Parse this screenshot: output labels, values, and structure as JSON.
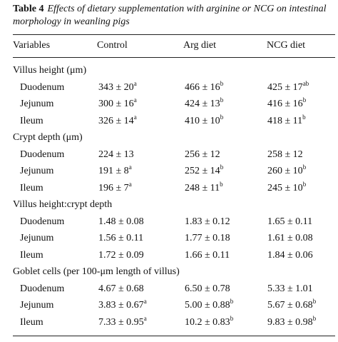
{
  "caption": {
    "label": "Table 4",
    "title": "Effects of dietary supplementation with arginine or NCG on intestinal morphology in weanling pigs"
  },
  "table": {
    "columns": [
      "Variables",
      "Control",
      "Arg diet",
      "NCG diet"
    ],
    "sections": [
      {
        "title": "Villus height (μm)",
        "rows": [
          {
            "label": "Duodenum",
            "cells": [
              {
                "text": "343 ± 20",
                "sup": "a"
              },
              {
                "text": "466 ± 16",
                "sup": "b"
              },
              {
                "text": "425 ± 17",
                "sup": "ab"
              }
            ]
          },
          {
            "label": "Jejunum",
            "cells": [
              {
                "text": "300 ± 16",
                "sup": "a"
              },
              {
                "text": "424 ± 13",
                "sup": "b"
              },
              {
                "text": "416 ± 16",
                "sup": "b"
              }
            ]
          },
          {
            "label": "Ileum",
            "cells": [
              {
                "text": "326 ± 14",
                "sup": "a"
              },
              {
                "text": "410 ± 10",
                "sup": "b"
              },
              {
                "text": "418 ± 11",
                "sup": "b"
              }
            ]
          }
        ]
      },
      {
        "title": "Crypt depth (μm)",
        "rows": [
          {
            "label": "Duodenum",
            "cells": [
              {
                "text": "224 ± 13"
              },
              {
                "text": "256 ± 12"
              },
              {
                "text": "258 ± 12"
              }
            ]
          },
          {
            "label": "Jejunum",
            "cells": [
              {
                "text": "191 ± 8",
                "sup": "a"
              },
              {
                "text": "252 ± 14",
                "sup": "b"
              },
              {
                "text": "260 ± 10",
                "sup": "b"
              }
            ]
          },
          {
            "label": "Ileum",
            "cells": [
              {
                "text": "196 ± 7",
                "sup": "a"
              },
              {
                "text": "248 ± 11",
                "sup": "b"
              },
              {
                "text": "245 ± 10",
                "sup": "b"
              }
            ]
          }
        ]
      },
      {
        "title": "Villus height:crypt depth",
        "rows": [
          {
            "label": "Duodenum",
            "cells": [
              {
                "text": "1.48 ± 0.08"
              },
              {
                "text": "1.83 ± 0.12"
              },
              {
                "text": "1.65 ± 0.11"
              }
            ]
          },
          {
            "label": "Jejunum",
            "cells": [
              {
                "text": "1.56 ± 0.11"
              },
              {
                "text": "1.77 ± 0.18"
              },
              {
                "text": "1.61 ± 0.08"
              }
            ]
          },
          {
            "label": "Ileum",
            "cells": [
              {
                "text": "1.72 ± 0.09"
              },
              {
                "text": "1.66 ± 0.11"
              },
              {
                "text": "1.84 ± 0.06"
              }
            ]
          }
        ]
      },
      {
        "title": "Goblet cells (per 100-μm length of villus)",
        "rows": [
          {
            "label": "Duodenum",
            "cells": [
              {
                "text": "4.67 ± 0.68"
              },
              {
                "text": "6.50 ± 0.78"
              },
              {
                "text": "5.33 ± 1.01"
              }
            ]
          },
          {
            "label": "Jejunum",
            "cells": [
              {
                "text": "3.83 ± 0.67",
                "sup": "a"
              },
              {
                "text": "5.00 ± 0.88",
                "sup": "b"
              },
              {
                "text": "5.67 ± 0.68",
                "sup": "b"
              }
            ]
          },
          {
            "label": "Ileum",
            "cells": [
              {
                "text": "7.33 ± 0.95",
                "sup": "a"
              },
              {
                "text": "10.2 ± 0.83",
                "sup": "b"
              },
              {
                "text": "9.83 ± 0.98",
                "sup": "b"
              }
            ]
          }
        ]
      }
    ]
  }
}
